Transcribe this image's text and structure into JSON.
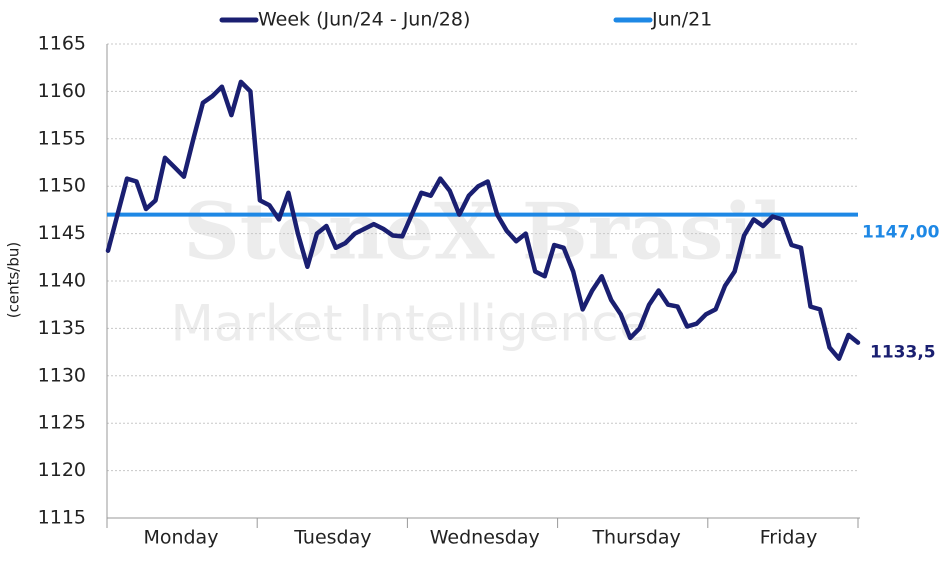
{
  "chart_data": {
    "type": "line",
    "y_label": "(cents/bu)",
    "watermark": [
      "StoneX Brasil",
      "Market Intelligence"
    ],
    "categories": [
      null,
      null,
      null,
      null,
      null,
      null,
      null,
      null,
      "Monday",
      null,
      null,
      null,
      null,
      null,
      null,
      null,
      null,
      null,
      null,
      null,
      null,
      null,
      null,
      null,
      "Tuesday",
      null,
      null,
      null,
      null,
      null,
      null,
      null,
      null,
      null,
      null,
      null,
      null,
      null,
      null,
      null,
      "Wednesday",
      null,
      null,
      null,
      null,
      null,
      null,
      null,
      null,
      null,
      null,
      null,
      null,
      null,
      null,
      null,
      "Thursday",
      null,
      null,
      null,
      null,
      null,
      null,
      null,
      null,
      null,
      null,
      null,
      null,
      null,
      null,
      null,
      "Friday",
      null,
      null,
      null,
      null,
      null,
      null,
      null
    ],
    "series": [
      {
        "name": "Week (Jun/24 - Jun/28)",
        "color": "#1a1f71",
        "values": [
          1143.2,
          1147,
          1150.8,
          1150.5,
          1147.6,
          1148.5,
          1153,
          1152,
          1151,
          1155,
          1158.8,
          1159.5,
          1160.5,
          1157.5,
          1161,
          1160,
          1148.5,
          1148,
          1146.5,
          1149.3,
          1145,
          1141.5,
          1145,
          1145.8,
          1143.5,
          1144,
          1145,
          1145.5,
          1146,
          1145.5,
          1144.8,
          1144.7,
          1147,
          1149.3,
          1149,
          1150.8,
          1149.5,
          1147,
          1149,
          1150,
          1150.5,
          1147,
          1145.3,
          1144.2,
          1145,
          1141,
          1140.5,
          1143.8,
          1143.5,
          1141,
          1137,
          1139,
          1140.5,
          1138,
          1136.5,
          1134,
          1135,
          1137.5,
          1139,
          1137.5,
          1137.3,
          1135.2,
          1135.5,
          1136.5,
          1137,
          1139.5,
          1141,
          1144.8,
          1146.5,
          1145.8,
          1146.8,
          1146.5,
          1143.8,
          1143.5,
          1137.3,
          1137,
          1133,
          1131.8,
          1134.3,
          1133.5
        ],
        "value_labels": [
          null,
          null,
          null,
          null,
          null,
          null,
          null,
          null,
          null,
          null,
          null,
          null,
          null,
          null,
          null,
          null,
          null,
          null,
          null,
          null,
          null,
          null,
          null,
          null,
          null,
          null,
          null,
          null,
          null,
          null,
          null,
          null,
          null,
          null,
          null,
          null,
          null,
          null,
          null,
          null,
          null,
          null,
          null,
          null,
          null,
          null,
          null,
          null,
          null,
          null,
          null,
          null,
          null,
          null,
          null,
          null,
          null,
          null,
          null,
          null,
          null,
          null,
          null,
          null,
          null,
          null,
          null,
          null,
          null,
          null,
          null,
          null,
          null,
          null,
          null,
          null,
          null,
          null,
          null,
          "1133,5"
        ]
      },
      {
        "name": "Jun/21",
        "color": "#1e88e5",
        "value": 1147,
        "value_label": "1147,00"
      }
    ],
    "ylim": [
      1115,
      1165
    ],
    "yticks": [
      1115,
      1120,
      1125,
      1130,
      1135,
      1140,
      1145,
      1150,
      1155,
      1160,
      1165
    ],
    "grid": true
  }
}
